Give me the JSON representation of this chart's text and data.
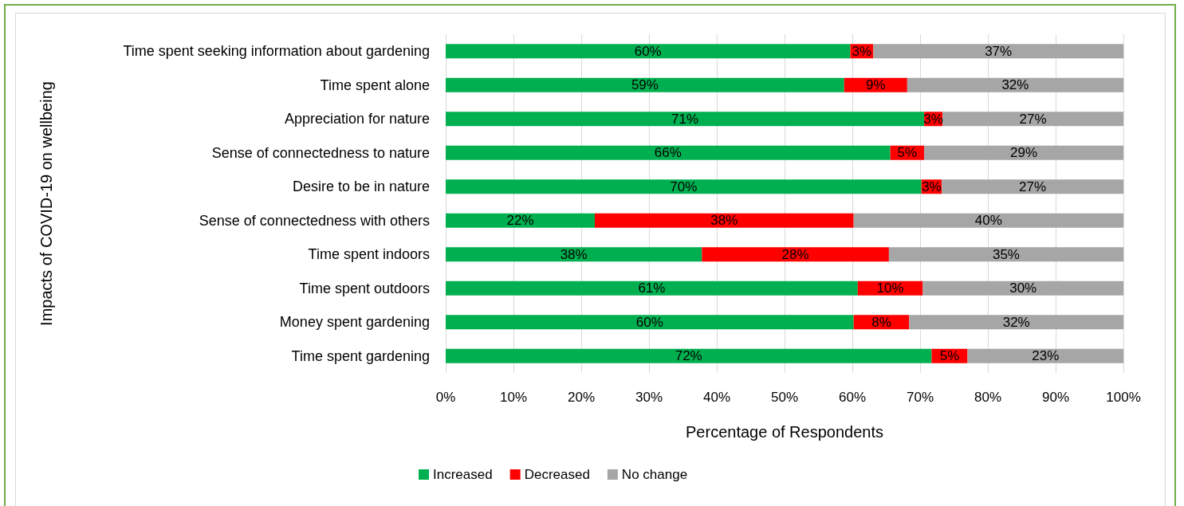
{
  "chart_data": {
    "type": "bar",
    "orientation": "horizontal",
    "stacked": true,
    "xlabel": "Percentage of Respondents",
    "ylabel": "Impacts of COVID-19 on wellbeing",
    "categories": [
      "Time spent seeking information about gardening",
      "Time spent alone",
      "Appreciation for nature",
      "Sense of connectedness to nature",
      "Desire to be in nature",
      "Sense of connectedness with others",
      "Time spent indoors",
      "Time spent outdoors",
      "Money spent gardening",
      "Time spent gardening"
    ],
    "series": [
      {
        "name": "Increased",
        "color": "#00b050",
        "values": [
          59.7,
          58.8,
          70.6,
          65.6,
          70.2,
          22.0,
          37.8,
          60.8,
          60.2,
          71.7
        ],
        "value_labels": [
          "60%",
          "59%",
          "71%",
          "66%",
          "70%",
          "22%",
          "38%",
          "61%",
          "60%",
          "72%"
        ]
      },
      {
        "name": "Decreased",
        "color": "#ff0000",
        "values": [
          3.4,
          9.3,
          2.7,
          5.0,
          3.0,
          38.2,
          27.6,
          9.6,
          8.2,
          5.3
        ],
        "value_labels": [
          "3%",
          "9%",
          "3%",
          "5%",
          "3%",
          "38%",
          "28%",
          "10%",
          "8%",
          "5%"
        ]
      },
      {
        "name": "No change",
        "color": "#a6a6a6",
        "values": [
          36.9,
          31.9,
          26.7,
          29.4,
          26.8,
          39.8,
          34.6,
          29.6,
          31.6,
          23.0
        ],
        "value_labels": [
          "37%",
          "32%",
          "27%",
          "29%",
          "27%",
          "40%",
          "35%",
          "30%",
          "32%",
          "23%"
        ]
      }
    ],
    "xlim": [
      0,
      100
    ],
    "xticks": [
      {
        "value": 0,
        "label": "0%"
      },
      {
        "value": 10,
        "label": "10%"
      },
      {
        "value": 20,
        "label": "20%"
      },
      {
        "value": 30,
        "label": "30%"
      },
      {
        "value": 40,
        "label": "40%"
      },
      {
        "value": 50,
        "label": "50%"
      },
      {
        "value": 60,
        "label": "60%"
      },
      {
        "value": 70,
        "label": "70%"
      },
      {
        "value": 80,
        "label": "80%"
      },
      {
        "value": 90,
        "label": "90%"
      },
      {
        "value": 100,
        "label": "100%"
      }
    ],
    "grid": "x",
    "legend": "bottom"
  }
}
